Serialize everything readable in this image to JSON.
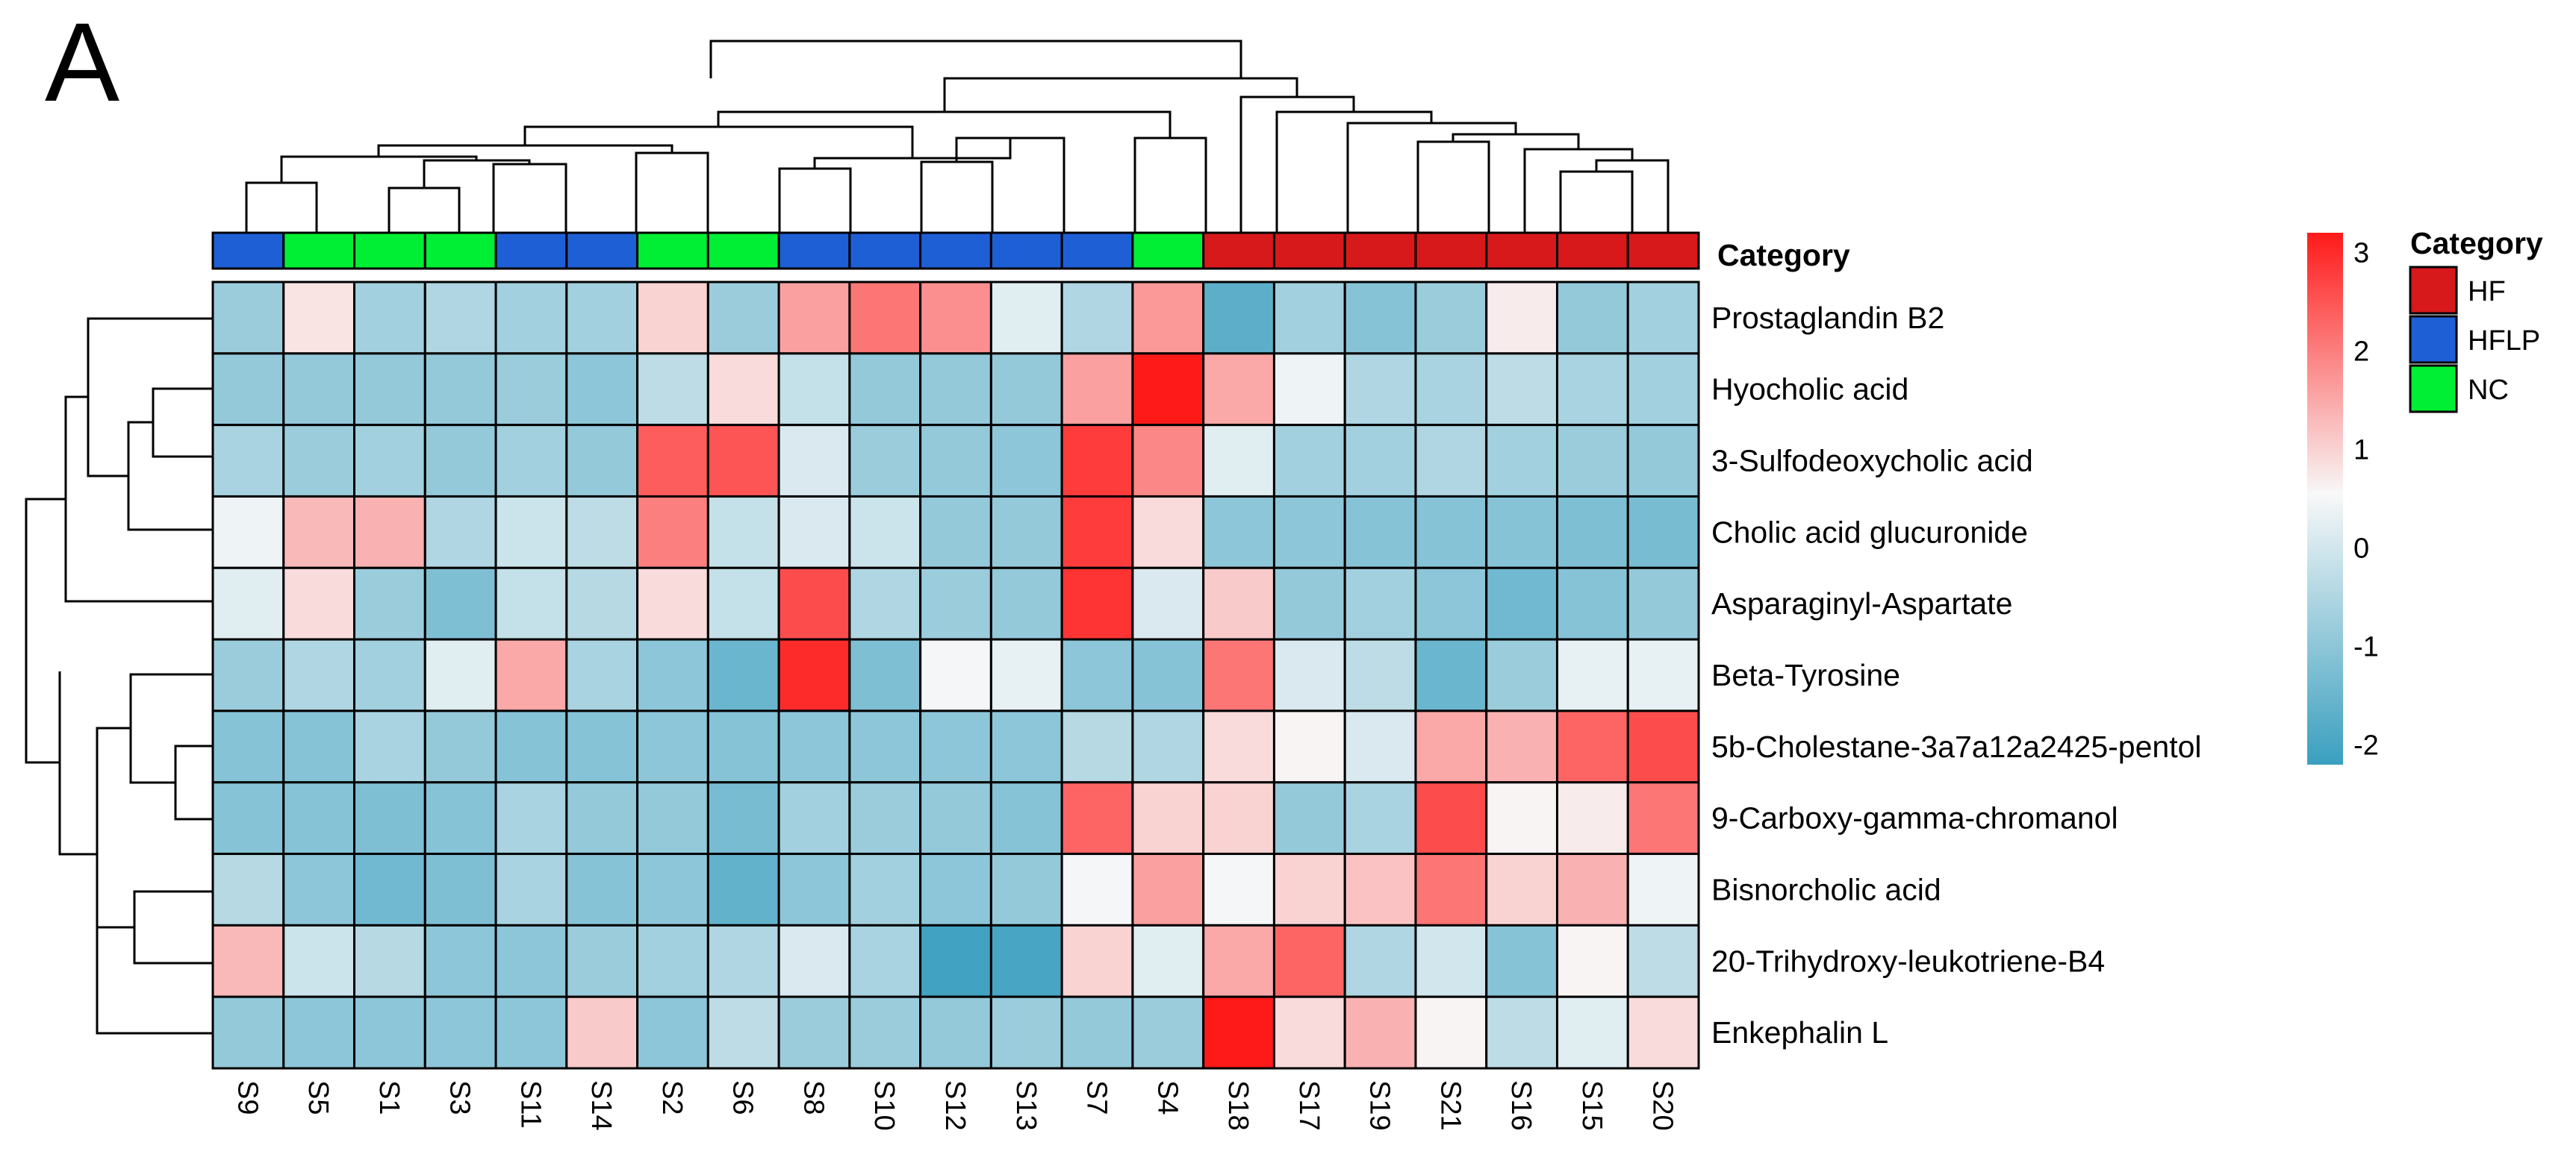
{
  "panel_label": "A",
  "chart_data": {
    "type": "heatmap",
    "title": "",
    "columns": [
      "S9",
      "S5",
      "S1",
      "S3",
      "S11",
      "S14",
      "S2",
      "S6",
      "S8",
      "S10",
      "S12",
      "S13",
      "S7",
      "S4",
      "S18",
      "S17",
      "S19",
      "S21",
      "S16",
      "S15",
      "S20"
    ],
    "rows": [
      "Prostaglandin B2",
      "Hyocholic acid",
      "3-Sulfodeoxycholic acid",
      "Cholic acid glucuronide",
      "Asparaginyl-Aspartate",
      "Beta-Tyrosine",
      "5b-Cholestane-3a7a12a2425-pentol",
      "9-Carboxy-gamma-chromanol",
      "Bisnorcholic acid",
      "20-Trihydroxy-leukotriene-B4",
      "Enkephalin L"
    ],
    "values": [
      [
        -0.8,
        0.8,
        -0.7,
        -0.5,
        -0.7,
        -0.7,
        1.0,
        -0.8,
        1.6,
        2.1,
        1.8,
        0.2,
        -0.5,
        1.7,
        -1.7,
        -0.7,
        -1.1,
        -0.8,
        0.7,
        -0.9,
        -0.7
      ],
      [
        -0.9,
        -0.9,
        -0.9,
        -0.9,
        -0.8,
        -1.0,
        -0.3,
        0.9,
        -0.2,
        -0.9,
        -0.9,
        -0.9,
        1.6,
        3.2,
        1.5,
        0.4,
        -0.5,
        -0.6,
        -0.3,
        -0.6,
        -0.7
      ],
      [
        -0.6,
        -0.8,
        -0.7,
        -0.9,
        -0.7,
        -0.9,
        2.4,
        2.5,
        0.1,
        -0.8,
        -0.9,
        -1.0,
        2.8,
        1.9,
        0.2,
        -0.7,
        -0.7,
        -0.5,
        -0.7,
        -0.8,
        -0.9
      ],
      [
        0.4,
        1.3,
        1.4,
        -0.5,
        -0.1,
        -0.3,
        2.0,
        -0.2,
        0.1,
        -0.1,
        -0.9,
        -0.9,
        2.8,
        0.9,
        -1.0,
        -1.0,
        -1.1,
        -1.1,
        -1.1,
        -1.2,
        -1.3
      ],
      [
        0.2,
        0.9,
        -0.8,
        -1.2,
        -0.2,
        -0.4,
        0.9,
        -0.2,
        2.6,
        -0.5,
        -0.8,
        -0.9,
        2.9,
        0.1,
        1.1,
        -0.9,
        -0.7,
        -1.0,
        -1.4,
        -1.1,
        -0.9
      ],
      [
        -0.8,
        -0.5,
        -0.7,
        0.2,
        1.5,
        -0.6,
        -1.0,
        -1.5,
        3.0,
        -1.2,
        0.5,
        0.3,
        -1.0,
        -1.1,
        2.1,
        0.1,
        -0.3,
        -1.5,
        -0.8,
        0.3,
        0.3
      ],
      [
        -1.1,
        -1.1,
        -0.6,
        -0.9,
        -1.1,
        -1.1,
        -1.0,
        -1.1,
        -1.0,
        -1.0,
        -1.0,
        -1.0,
        -0.4,
        -0.5,
        0.9,
        0.6,
        0.1,
        1.5,
        1.4,
        2.3,
        2.6
      ],
      [
        -1.1,
        -1.1,
        -1.2,
        -1.1,
        -0.6,
        -0.9,
        -0.9,
        -1.3,
        -0.7,
        -0.8,
        -0.9,
        -1.1,
        2.3,
        1.0,
        1.0,
        -0.9,
        -0.6,
        2.6,
        0.6,
        0.7,
        2.1
      ],
      [
        -0.4,
        -1.0,
        -1.4,
        -1.2,
        -0.6,
        -1.1,
        -1.0,
        -1.6,
        -1.0,
        -0.7,
        -1.0,
        -0.9,
        0.5,
        1.6,
        0.5,
        1.0,
        1.2,
        2.1,
        1.0,
        1.4,
        0.4
      ],
      [
        1.3,
        -0.1,
        -0.4,
        -1.0,
        -1.0,
        -0.8,
        -0.7,
        -0.5,
        0.1,
        -0.6,
        -2.1,
        -2.0,
        1.0,
        0.2,
        1.5,
        2.3,
        -0.5,
        0.0,
        -1.1,
        0.6,
        -0.3
      ],
      [
        -0.9,
        -1.0,
        -1.0,
        -1.0,
        -1.0,
        1.1,
        -1.0,
        -0.3,
        -0.8,
        -0.8,
        -0.9,
        -0.8,
        -0.9,
        -0.8,
        3.2,
        0.9,
        1.4,
        0.6,
        -0.3,
        0.2,
        0.9
      ]
    ],
    "category_header": "Category",
    "column_categories": [
      "HFLP",
      "NC",
      "NC",
      "NC",
      "HFLP",
      "HFLP",
      "NC",
      "NC",
      "HFLP",
      "HFLP",
      "HFLP",
      "HFLP",
      "HFLP",
      "NC",
      "HF",
      "HF",
      "HF",
      "HF",
      "HF",
      "HF",
      "HF"
    ],
    "category_legend": {
      "title": "Category",
      "entries": [
        {
          "label": "HF",
          "color": "#d7191c"
        },
        {
          "label": "HFLP",
          "color": "#1f5fd6"
        },
        {
          "label": "NC",
          "color": "#00ee33"
        }
      ]
    },
    "color_scale": {
      "range": [
        -2.2,
        3.2
      ],
      "ticks": [
        3,
        2,
        1,
        0,
        -1,
        -2
      ],
      "low_color": "#3a9fbf",
      "mid_color": "#f8f8f8",
      "high_color": "#ff1a1a",
      "midpoint": 0.55
    }
  }
}
